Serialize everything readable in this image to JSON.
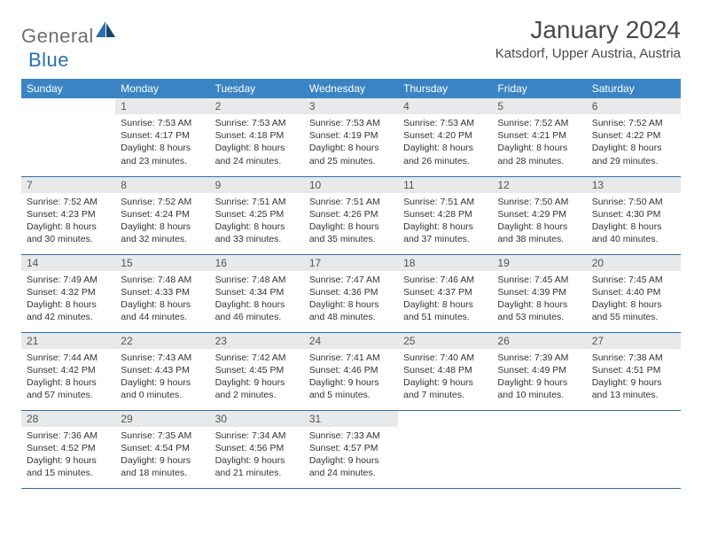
{
  "logo": {
    "part1": "General",
    "part2": "Blue"
  },
  "title": "January 2024",
  "location": "Katsdorf, Upper Austria, Austria",
  "colors": {
    "header_bg": "#3b84c4",
    "header_text": "#ffffff",
    "daynum_bg": "#e8e9ea",
    "row_border": "#2f6fa8",
    "logo_gray": "#6f6f6f",
    "logo_blue": "#2b6fb0"
  },
  "weekdays": [
    "Sunday",
    "Monday",
    "Tuesday",
    "Wednesday",
    "Thursday",
    "Friday",
    "Saturday"
  ],
  "weeks": [
    [
      null,
      {
        "n": "1",
        "sr": "7:53 AM",
        "ss": "4:17 PM",
        "dl": "8 hours and 23 minutes."
      },
      {
        "n": "2",
        "sr": "7:53 AM",
        "ss": "4:18 PM",
        "dl": "8 hours and 24 minutes."
      },
      {
        "n": "3",
        "sr": "7:53 AM",
        "ss": "4:19 PM",
        "dl": "8 hours and 25 minutes."
      },
      {
        "n": "4",
        "sr": "7:53 AM",
        "ss": "4:20 PM",
        "dl": "8 hours and 26 minutes."
      },
      {
        "n": "5",
        "sr": "7:52 AM",
        "ss": "4:21 PM",
        "dl": "8 hours and 28 minutes."
      },
      {
        "n": "6",
        "sr": "7:52 AM",
        "ss": "4:22 PM",
        "dl": "8 hours and 29 minutes."
      }
    ],
    [
      {
        "n": "7",
        "sr": "7:52 AM",
        "ss": "4:23 PM",
        "dl": "8 hours and 30 minutes."
      },
      {
        "n": "8",
        "sr": "7:52 AM",
        "ss": "4:24 PM",
        "dl": "8 hours and 32 minutes."
      },
      {
        "n": "9",
        "sr": "7:51 AM",
        "ss": "4:25 PM",
        "dl": "8 hours and 33 minutes."
      },
      {
        "n": "10",
        "sr": "7:51 AM",
        "ss": "4:26 PM",
        "dl": "8 hours and 35 minutes."
      },
      {
        "n": "11",
        "sr": "7:51 AM",
        "ss": "4:28 PM",
        "dl": "8 hours and 37 minutes."
      },
      {
        "n": "12",
        "sr": "7:50 AM",
        "ss": "4:29 PM",
        "dl": "8 hours and 38 minutes."
      },
      {
        "n": "13",
        "sr": "7:50 AM",
        "ss": "4:30 PM",
        "dl": "8 hours and 40 minutes."
      }
    ],
    [
      {
        "n": "14",
        "sr": "7:49 AM",
        "ss": "4:32 PM",
        "dl": "8 hours and 42 minutes."
      },
      {
        "n": "15",
        "sr": "7:48 AM",
        "ss": "4:33 PM",
        "dl": "8 hours and 44 minutes."
      },
      {
        "n": "16",
        "sr": "7:48 AM",
        "ss": "4:34 PM",
        "dl": "8 hours and 46 minutes."
      },
      {
        "n": "17",
        "sr": "7:47 AM",
        "ss": "4:36 PM",
        "dl": "8 hours and 48 minutes."
      },
      {
        "n": "18",
        "sr": "7:46 AM",
        "ss": "4:37 PM",
        "dl": "8 hours and 51 minutes."
      },
      {
        "n": "19",
        "sr": "7:45 AM",
        "ss": "4:39 PM",
        "dl": "8 hours and 53 minutes."
      },
      {
        "n": "20",
        "sr": "7:45 AM",
        "ss": "4:40 PM",
        "dl": "8 hours and 55 minutes."
      }
    ],
    [
      {
        "n": "21",
        "sr": "7:44 AM",
        "ss": "4:42 PM",
        "dl": "8 hours and 57 minutes."
      },
      {
        "n": "22",
        "sr": "7:43 AM",
        "ss": "4:43 PM",
        "dl": "9 hours and 0 minutes."
      },
      {
        "n": "23",
        "sr": "7:42 AM",
        "ss": "4:45 PM",
        "dl": "9 hours and 2 minutes."
      },
      {
        "n": "24",
        "sr": "7:41 AM",
        "ss": "4:46 PM",
        "dl": "9 hours and 5 minutes."
      },
      {
        "n": "25",
        "sr": "7:40 AM",
        "ss": "4:48 PM",
        "dl": "9 hours and 7 minutes."
      },
      {
        "n": "26",
        "sr": "7:39 AM",
        "ss": "4:49 PM",
        "dl": "9 hours and 10 minutes."
      },
      {
        "n": "27",
        "sr": "7:38 AM",
        "ss": "4:51 PM",
        "dl": "9 hours and 13 minutes."
      }
    ],
    [
      {
        "n": "28",
        "sr": "7:36 AM",
        "ss": "4:52 PM",
        "dl": "9 hours and 15 minutes."
      },
      {
        "n": "29",
        "sr": "7:35 AM",
        "ss": "4:54 PM",
        "dl": "9 hours and 18 minutes."
      },
      {
        "n": "30",
        "sr": "7:34 AM",
        "ss": "4:56 PM",
        "dl": "9 hours and 21 minutes."
      },
      {
        "n": "31",
        "sr": "7:33 AM",
        "ss": "4:57 PM",
        "dl": "9 hours and 24 minutes."
      },
      null,
      null,
      null
    ]
  ],
  "labels": {
    "sunrise": "Sunrise:",
    "sunset": "Sunset:",
    "daylight": "Daylight:"
  }
}
